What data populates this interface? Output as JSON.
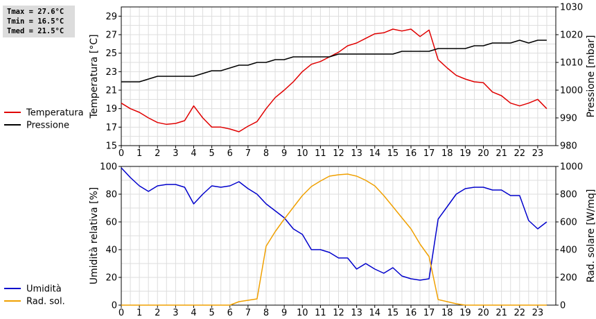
{
  "stats": {
    "tmax": "Tmax = 27.6°C",
    "tmin": "Tmin = 16.5°C",
    "tmed": "Tmed = 21.5°C"
  },
  "chart_data": [
    {
      "type": "line",
      "x": [
        0,
        0.5,
        1,
        1.5,
        2,
        2.5,
        3,
        3.5,
        4,
        4.5,
        5,
        5.5,
        6,
        6.5,
        7,
        7.5,
        8,
        8.5,
        9,
        9.5,
        10,
        10.5,
        11,
        11.5,
        12,
        12.5,
        13,
        13.5,
        14,
        14.5,
        15,
        15.5,
        16,
        16.5,
        17,
        17.5,
        18,
        18.5,
        19,
        19.5,
        20,
        20.5,
        21,
        21.5,
        22,
        22.5,
        23,
        23.5
      ],
      "xlim": [
        0,
        24
      ],
      "xticks": [
        0,
        1,
        2,
        3,
        4,
        5,
        6,
        7,
        8,
        9,
        10,
        11,
        12,
        13,
        14,
        15,
        16,
        17,
        18,
        19,
        20,
        21,
        22,
        23
      ],
      "ylabel": "Temperatura [°C]",
      "ylim": [
        15,
        30
      ],
      "yticks": [
        15,
        17,
        19,
        21,
        23,
        25,
        27,
        29
      ],
      "y2label": "Pressione [mbar]",
      "y2lim": [
        980,
        1030
      ],
      "y2ticks": [
        980,
        990,
        1000,
        1010,
        1020,
        1030
      ],
      "grid": true,
      "legend_position": "left",
      "series": [
        {
          "name": "Temperatura",
          "axis": "left",
          "color": "#e00000",
          "values": [
            19.6,
            19.0,
            18.6,
            18.0,
            17.5,
            17.3,
            17.4,
            17.7,
            19.3,
            18.0,
            17.0,
            17.0,
            16.8,
            16.5,
            17.1,
            17.6,
            19.0,
            20.2,
            21.0,
            21.9,
            23.0,
            23.8,
            24.1,
            24.6,
            25.1,
            25.8,
            26.1,
            26.6,
            27.1,
            27.2,
            27.6,
            27.4,
            27.6,
            26.8,
            27.5,
            24.3,
            23.4,
            22.6,
            22.2,
            21.9,
            21.8,
            20.8,
            20.4,
            19.6,
            19.3,
            19.6,
            20.0,
            19.0
          ]
        },
        {
          "name": "Pressione",
          "axis": "right",
          "color": "#000000",
          "values": [
            1003,
            1003,
            1003,
            1004,
            1005,
            1005,
            1005,
            1005,
            1005,
            1006,
            1007,
            1007,
            1008,
            1009,
            1009,
            1010,
            1010,
            1011,
            1011,
            1012,
            1012,
            1012,
            1012,
            1012,
            1013,
            1013,
            1013,
            1013,
            1013,
            1013,
            1013,
            1014,
            1014,
            1014,
            1014,
            1015,
            1015,
            1015,
            1015,
            1016,
            1016,
            1017,
            1017,
            1017,
            1018,
            1017,
            1018,
            1018
          ]
        }
      ]
    },
    {
      "type": "line",
      "x": [
        0,
        0.5,
        1,
        1.5,
        2,
        2.5,
        3,
        3.5,
        4,
        4.5,
        5,
        5.5,
        6,
        6.5,
        7,
        7.5,
        8,
        8.5,
        9,
        9.5,
        10,
        10.5,
        11,
        11.5,
        12,
        12.5,
        13,
        13.5,
        14,
        14.5,
        15,
        15.5,
        16,
        16.5,
        17,
        17.5,
        18,
        18.5,
        19,
        19.5,
        20,
        20.5,
        21,
        21.5,
        22,
        22.5,
        23,
        23.5
      ],
      "xlim": [
        0,
        24
      ],
      "xticks": [
        0,
        1,
        2,
        3,
        4,
        5,
        6,
        7,
        8,
        9,
        10,
        11,
        12,
        13,
        14,
        15,
        16,
        17,
        18,
        19,
        20,
        21,
        22,
        23
      ],
      "ylabel": "Umidità relativa [%]",
      "ylim": [
        0,
        100
      ],
      "yticks": [
        0,
        20,
        40,
        60,
        80,
        100
      ],
      "y2label": "Rad. solare [W/mq]",
      "y2lim": [
        0,
        1000
      ],
      "y2ticks": [
        0,
        200,
        400,
        600,
        800,
        1000
      ],
      "grid": true,
      "legend_position": "left",
      "series": [
        {
          "name": "Umidità",
          "axis": "left",
          "color": "#0000cc",
          "values": [
            99,
            92,
            86,
            82,
            86,
            87,
            87,
            85,
            73,
            80,
            86,
            85,
            86,
            89,
            84,
            80,
            73,
            68,
            63,
            55,
            51,
            40,
            40,
            38,
            34,
            34,
            26,
            30,
            26,
            23,
            27,
            21,
            19,
            18,
            19,
            62,
            71,
            80,
            84,
            85,
            85,
            83,
            83,
            79,
            79,
            61,
            55,
            60
          ]
        },
        {
          "name": "Rad. sol.",
          "axis": "right",
          "color": "#f0a000",
          "values": [
            0,
            0,
            0,
            0,
            0,
            0,
            0,
            0,
            0,
            0,
            0,
            0,
            0,
            25,
            35,
            45,
            425,
            530,
            620,
            705,
            790,
            855,
            895,
            930,
            940,
            945,
            930,
            900,
            860,
            790,
            710,
            630,
            550,
            440,
            350,
            40,
            25,
            10,
            0,
            0,
            0,
            0,
            0,
            0,
            0,
            0,
            0,
            0
          ]
        }
      ]
    }
  ]
}
